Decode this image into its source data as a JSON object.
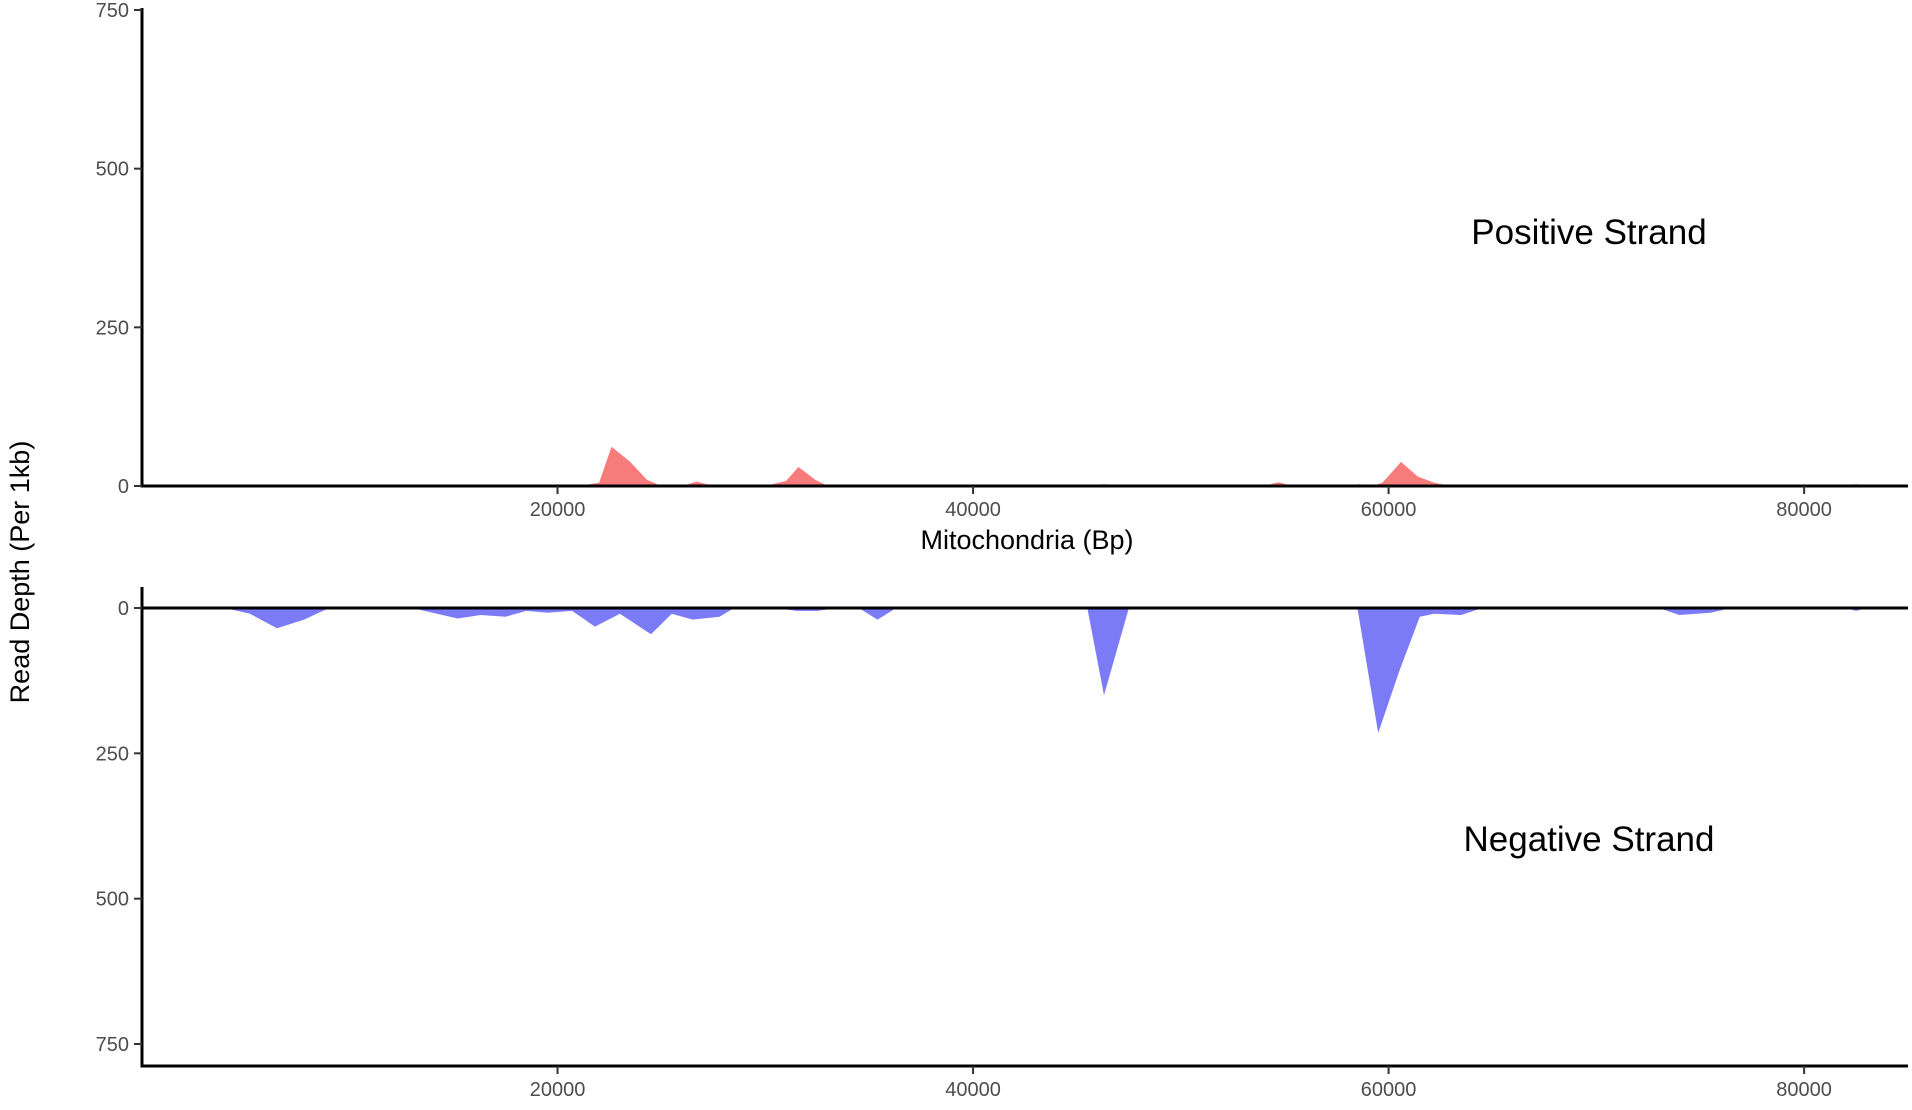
{
  "chart_data": {
    "type": "area",
    "ylabel": "Read Depth (Per 1kb)",
    "xlabel": "Mitochondria (Bp)",
    "xlim": [
      0,
      85000
    ],
    "x_ticks": [
      20000,
      40000,
      60000,
      80000
    ],
    "panels": [
      {
        "label": "Positive Strand",
        "color": "#f87b7b",
        "ylim": [
          0,
          750
        ],
        "y_ticks": [
          0,
          250,
          500,
          750
        ],
        "direction": "up",
        "show_xlabel": true,
        "series": [
          {
            "x": [
              0,
              21000,
              22000,
              22600,
              23500,
              24300,
              25000,
              26000,
              26700,
              27500,
              30000,
              31000,
              31600,
              32400,
              33000,
              45500,
              46300,
              47000,
              50000,
              50500,
              51000,
              54000,
              54700,
              55400,
              58000,
              58600,
              59200,
              59700,
              60600,
              61400,
              62200,
              63000,
              82000,
              82500,
              83000,
              85000
            ],
            "y": [
              0,
              0,
              5,
              62,
              38,
              10,
              0,
              0,
              7,
              0,
              0,
              8,
              30,
              10,
              0,
              0,
              3,
              0,
              0,
              2,
              0,
              0,
              6,
              0,
              0,
              3,
              0,
              5,
              38,
              15,
              5,
              0,
              0,
              3,
              0,
              0
            ]
          }
        ]
      },
      {
        "label": "Negative Strand",
        "color": "#7b7bf8",
        "ylim": [
          0,
          750
        ],
        "y_ticks": [
          0,
          250,
          500,
          750
        ],
        "direction": "down",
        "show_xlabel": false,
        "series": [
          {
            "x": [
              0,
              4000,
              5200,
              6500,
              7800,
              9000,
              13000,
              14200,
              15200,
              16300,
              17500,
              18500,
              19500,
              20700,
              21800,
              23000,
              24500,
              25500,
              26500,
              27800,
              28500,
              30500,
              31500,
              32500,
              33500,
              34500,
              35400,
              36300,
              41000,
              45500,
              46300,
              47500,
              50000,
              54500,
              56000,
              58500,
              59500,
              60500,
              61500,
              62200,
              63500,
              64500,
              73000,
              74000,
              75500,
              76500,
              82000,
              82500,
              83000,
              85000
            ],
            "y": [
              0,
              0,
              10,
              35,
              20,
              0,
              0,
              10,
              18,
              12,
              15,
              5,
              8,
              5,
              32,
              10,
              45,
              10,
              20,
              15,
              0,
              0,
              5,
              5,
              0,
              0,
              20,
              0,
              0,
              0,
              150,
              0,
              0,
              0,
              0,
              0,
              215,
              110,
              15,
              10,
              12,
              0,
              0,
              12,
              8,
              0,
              0,
              5,
              0,
              0
            ]
          }
        ]
      }
    ]
  }
}
